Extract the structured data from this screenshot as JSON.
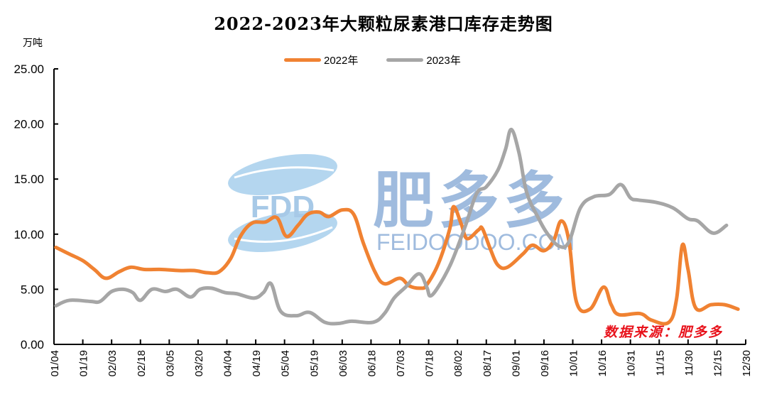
{
  "title": "2022-2023年大颗粒尿素港口库存走势图",
  "unit": "万吨",
  "source_note": "数据来源：肥多多",
  "watermark": {
    "cn": "肥多多",
    "en": "FEIDOODOO.COM",
    "logo_text": "FDD"
  },
  "colors": {
    "series_2022": "#f08232",
    "series_2023": "#a6a6a6",
    "source_note": "#e8121b",
    "watermark_blue": "#8fb0d9"
  },
  "legend": [
    {
      "label": "2022年",
      "color": "#f08232"
    },
    {
      "label": "2023年",
      "color": "#a6a6a6"
    }
  ],
  "chart_data": {
    "type": "line",
    "title": "2022-2023年大颗粒尿素港口库存走势图",
    "xlabel": "",
    "ylabel": "万吨",
    "ylim": [
      0,
      25
    ],
    "yticks": [
      "0.00",
      "5.00",
      "10.00",
      "15.00",
      "20.00",
      "25.00"
    ],
    "grid": false,
    "legend_position": "top",
    "categories": [
      "01/04",
      "01/19",
      "02/03",
      "02/18",
      "03/05",
      "03/20",
      "04/04",
      "04/19",
      "05/04",
      "05/19",
      "06/03",
      "06/18",
      "07/03",
      "07/18",
      "08/02",
      "08/17",
      "09/01",
      "09/16",
      "10/01",
      "10/16",
      "10/31",
      "11/15",
      "11/30",
      "12/15",
      "12/30"
    ],
    "x_unit": "day_of_year (01/04 = 4, 12/30 = 364)",
    "series": [
      {
        "name": "2022年",
        "points": [
          [
            5,
            8.8
          ],
          [
            12,
            8.2
          ],
          [
            19,
            7.6
          ],
          [
            25,
            6.8
          ],
          [
            31,
            6.0
          ],
          [
            38,
            6.6
          ],
          [
            44,
            7.0
          ],
          [
            51,
            6.8
          ],
          [
            60,
            6.8
          ],
          [
            69,
            6.7
          ],
          [
            77,
            6.7
          ],
          [
            84,
            6.5
          ],
          [
            90,
            6.6
          ],
          [
            96,
            7.8
          ],
          [
            101,
            9.8
          ],
          [
            107,
            11.0
          ],
          [
            114,
            11.1
          ],
          [
            120,
            11.5
          ],
          [
            125,
            9.8
          ],
          [
            131,
            10.8
          ],
          [
            136,
            11.8
          ],
          [
            142,
            12.0
          ],
          [
            147,
            11.6
          ],
          [
            154,
            12.2
          ],
          [
            160,
            11.8
          ],
          [
            165,
            9.2
          ],
          [
            171,
            6.6
          ],
          [
            176,
            5.5
          ],
          [
            184,
            6.0
          ],
          [
            189,
            5.3
          ],
          [
            195,
            5.1
          ],
          [
            198,
            5.4
          ],
          [
            204,
            7.3
          ],
          [
            210,
            10.5
          ],
          [
            212,
            12.5
          ],
          [
            216,
            10.9
          ],
          [
            219,
            9.6
          ],
          [
            225,
            10.4
          ],
          [
            227,
            10.5
          ],
          [
            231,
            8.7
          ],
          [
            235,
            7.2
          ],
          [
            240,
            7.0
          ],
          [
            248,
            8.2
          ],
          [
            253,
            9.0
          ],
          [
            259,
            8.5
          ],
          [
            264,
            9.4
          ],
          [
            268,
            11.2
          ],
          [
            272,
            9.4
          ],
          [
            276,
            3.8
          ],
          [
            283,
            3.2
          ],
          [
            290,
            5.2
          ],
          [
            294,
            3.6
          ],
          [
            298,
            2.7
          ],
          [
            309,
            2.8
          ],
          [
            315,
            2.2
          ],
          [
            324,
            2.0
          ],
          [
            328,
            4.1
          ],
          [
            331,
            9.0
          ],
          [
            334,
            6.8
          ],
          [
            338,
            3.3
          ],
          [
            346,
            3.6
          ],
          [
            353,
            3.6
          ],
          [
            360,
            3.2
          ]
        ]
      },
      {
        "name": "2023年",
        "points": [
          [
            5,
            3.5
          ],
          [
            12,
            4.0
          ],
          [
            23,
            3.9
          ],
          [
            28,
            3.9
          ],
          [
            34,
            4.8
          ],
          [
            40,
            5.0
          ],
          [
            45,
            4.7
          ],
          [
            49,
            4.0
          ],
          [
            55,
            5.0
          ],
          [
            62,
            4.8
          ],
          [
            68,
            5.0
          ],
          [
            75,
            4.3
          ],
          [
            80,
            5.0
          ],
          [
            86,
            5.1
          ],
          [
            93,
            4.7
          ],
          [
            99,
            4.6
          ],
          [
            108,
            4.2
          ],
          [
            113,
            4.7
          ],
          [
            117,
            5.5
          ],
          [
            122,
            3.0
          ],
          [
            130,
            2.6
          ],
          [
            137,
            2.9
          ],
          [
            145,
            2.0
          ],
          [
            152,
            1.9
          ],
          [
            159,
            2.1
          ],
          [
            170,
            2.0
          ],
          [
            176,
            2.8
          ],
          [
            181,
            4.2
          ],
          [
            187,
            5.2
          ],
          [
            194,
            6.4
          ],
          [
            198,
            5.2
          ],
          [
            200,
            4.4
          ],
          [
            205,
            5.5
          ],
          [
            211,
            7.5
          ],
          [
            218,
            10.7
          ],
          [
            224,
            13.7
          ],
          [
            229,
            14.3
          ],
          [
            235,
            15.8
          ],
          [
            239,
            17.7
          ],
          [
            242,
            19.5
          ],
          [
            246,
            17.4
          ],
          [
            250,
            13.8
          ],
          [
            256,
            11.5
          ],
          [
            261,
            10.0
          ],
          [
            267,
            8.9
          ],
          [
            272,
            9.3
          ],
          [
            278,
            12.4
          ],
          [
            285,
            13.4
          ],
          [
            293,
            13.6
          ],
          [
            299,
            14.5
          ],
          [
            304,
            13.3
          ],
          [
            308,
            13.1
          ],
          [
            317,
            12.9
          ],
          [
            326,
            12.4
          ],
          [
            334,
            11.4
          ],
          [
            339,
            11.2
          ],
          [
            347,
            10.1
          ],
          [
            354,
            10.8
          ]
        ]
      }
    ]
  }
}
